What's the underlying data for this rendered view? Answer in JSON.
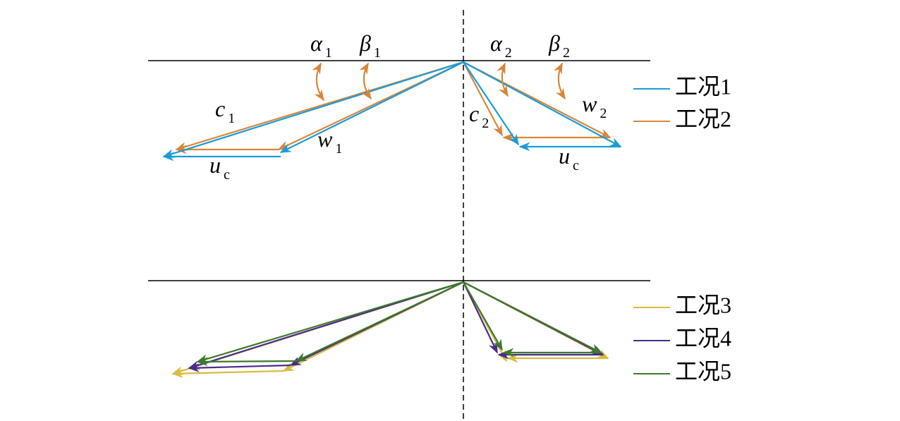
{
  "labels": [
    {
      "symbol": "α",
      "sub": "1"
    },
    {
      "symbol": "β",
      "sub": "1"
    },
    {
      "symbol": "α",
      "sub": "2"
    },
    {
      "symbol": "β",
      "sub": "2"
    },
    {
      "symbol": "c",
      "sub": "1"
    },
    {
      "symbol": "w",
      "sub": "1"
    },
    {
      "symbol": "u",
      "sub": "c"
    },
    {
      "symbol": "c",
      "sub": "2"
    },
    {
      "symbol": "w",
      "sub": "2"
    },
    {
      "symbol": "u",
      "sub": "c"
    }
  ],
  "legend": [
    {
      "name": "工况1",
      "color": "#1b9cd8"
    },
    {
      "name": "工况2",
      "color": "#d8863a"
    },
    {
      "name": "工况3",
      "color": "#d9bb3f"
    },
    {
      "name": "工况4",
      "color": "#4a2b8c"
    },
    {
      "name": "工况5",
      "color": "#3d7a2c"
    }
  ]
}
